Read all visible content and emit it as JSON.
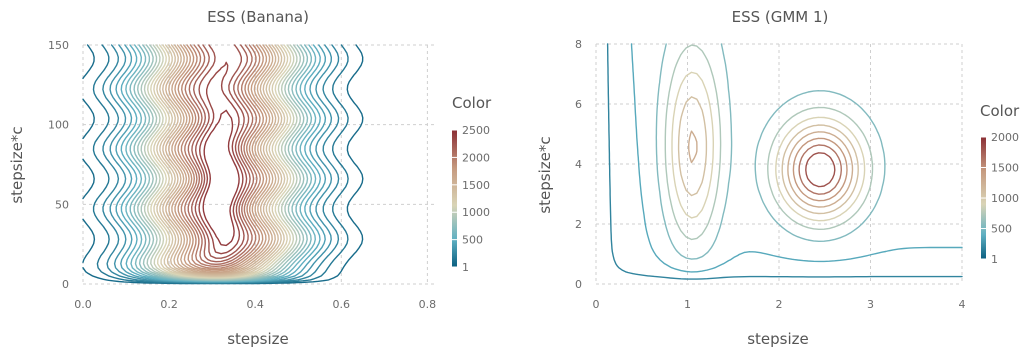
{
  "colors": {
    "low": "#0a5f80",
    "lowmid": "#5fb0c2",
    "mid": "#d9d4b6",
    "highmid": "#c69b80",
    "high": "#8b2f35",
    "grid": "#cfcfcf",
    "text": "#6c6c6c"
  },
  "chart_data": [
    {
      "type": "contour",
      "title": "ESS (Banana)",
      "xlabel": "stepsize",
      "ylabel": "stepsize*c",
      "xlim": [
        0.0,
        0.82
      ],
      "ylim": [
        0,
        150
      ],
      "xticks": [
        0.0,
        0.2,
        0.4,
        0.6,
        0.8
      ],
      "xtick_labels": [
        "0.0",
        "0.2",
        "0.4",
        "0.6",
        "0.8"
      ],
      "yticks": [
        0,
        50,
        100,
        150
      ],
      "ytick_labels": [
        "0",
        "50",
        "100",
        "150"
      ],
      "grid": true,
      "colorbar": {
        "label": "Color",
        "min": 1,
        "max": 2500,
        "ticks": [
          1,
          500,
          1000,
          1500,
          2000,
          2500
        ],
        "tick_labels": [
          "1",
          "500",
          "1000",
          "1500",
          "2000",
          "2500"
        ]
      },
      "peak": [
        0.32,
        62
      ],
      "level_count": 30
    },
    {
      "type": "contour",
      "title": "ESS (GMM 1)",
      "xlabel": "stepsize",
      "ylabel": "stepsize*c",
      "xlim": [
        0,
        4
      ],
      "ylim": [
        0,
        8
      ],
      "xticks": [
        0,
        1,
        2,
        3,
        4
      ],
      "xtick_labels": [
        "0",
        "1",
        "2",
        "3",
        "4"
      ],
      "yticks": [
        0,
        2,
        4,
        6,
        8
      ],
      "ytick_labels": [
        "0",
        "2",
        "4",
        "6",
        "8"
      ],
      "grid": true,
      "colorbar": {
        "label": "Color",
        "min": 1,
        "max": 2000,
        "ticks": [
          1,
          500,
          1000,
          1500,
          2000
        ],
        "tick_labels": [
          "1",
          "500",
          "1000",
          "1500",
          "2000"
        ]
      },
      "peak": [
        2.45,
        3.8
      ],
      "level_count": 10
    }
  ]
}
